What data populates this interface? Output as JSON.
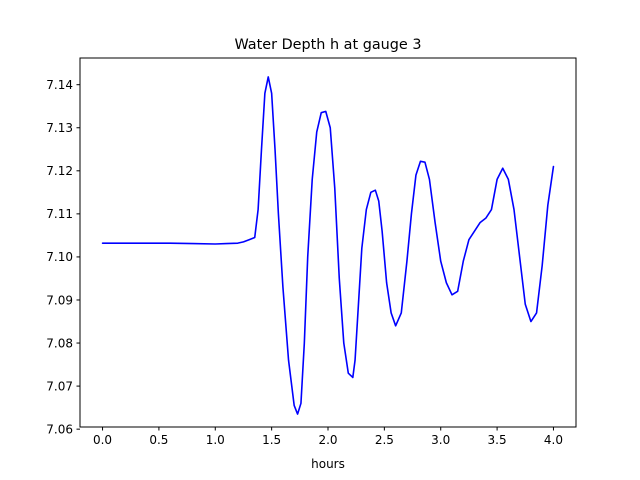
{
  "chart_data": {
    "type": "line",
    "title": "Water Depth h at gauge 3",
    "xlabel": "hours",
    "ylabel": "",
    "xlim": [
      -0.2,
      4.2
    ],
    "ylim": [
      7.0605,
      7.1462
    ],
    "xticks": [
      0.0,
      0.5,
      1.0,
      1.5,
      2.0,
      2.5,
      3.0,
      3.5,
      4.0
    ],
    "xtick_labels": [
      "0.0",
      "0.5",
      "1.0",
      "1.5",
      "2.0",
      "2.5",
      "3.0",
      "3.5",
      "4.0"
    ],
    "yticks": [
      7.06,
      7.07,
      7.08,
      7.09,
      7.1,
      7.11,
      7.12,
      7.13,
      7.14
    ],
    "ytick_labels": [
      "7.06",
      "7.07",
      "7.08",
      "7.09",
      "7.10",
      "7.11",
      "7.12",
      "7.13",
      "7.14"
    ],
    "grid": false,
    "legend": "none",
    "series": [
      {
        "color": "#0000ff",
        "x": [
          0.0,
          0.2,
          0.4,
          0.6,
          0.8,
          1.0,
          1.1,
          1.2,
          1.25,
          1.3,
          1.35,
          1.38,
          1.41,
          1.44,
          1.47,
          1.5,
          1.53,
          1.56,
          1.6,
          1.65,
          1.7,
          1.73,
          1.76,
          1.79,
          1.82,
          1.86,
          1.9,
          1.94,
          1.98,
          2.02,
          2.06,
          2.1,
          2.14,
          2.18,
          2.22,
          2.24,
          2.27,
          2.3,
          2.34,
          2.38,
          2.42,
          2.45,
          2.48,
          2.52,
          2.56,
          2.6,
          2.65,
          2.7,
          2.74,
          2.78,
          2.82,
          2.86,
          2.9,
          2.95,
          3.0,
          3.05,
          3.1,
          3.15,
          3.2,
          3.25,
          3.3,
          3.35,
          3.4,
          3.45,
          3.5,
          3.55,
          3.6,
          3.65,
          3.7,
          3.75,
          3.8,
          3.85,
          3.9,
          3.95,
          4.0
        ],
        "y": [
          7.1032,
          7.1032,
          7.1032,
          7.1032,
          7.1031,
          7.103,
          7.1031,
          7.1032,
          7.1035,
          7.104,
          7.1045,
          7.111,
          7.125,
          7.138,
          7.1418,
          7.138,
          7.125,
          7.11,
          7.093,
          7.076,
          7.0655,
          7.0635,
          7.066,
          7.08,
          7.1,
          7.118,
          7.129,
          7.1335,
          7.1338,
          7.13,
          7.116,
          7.095,
          7.08,
          7.073,
          7.072,
          7.076,
          7.089,
          7.102,
          7.111,
          7.115,
          7.1155,
          7.113,
          7.106,
          7.094,
          7.087,
          7.084,
          7.087,
          7.099,
          7.11,
          7.119,
          7.1222,
          7.122,
          7.118,
          7.108,
          7.099,
          7.094,
          7.0912,
          7.092,
          7.099,
          7.104,
          7.106,
          7.108,
          7.109,
          7.111,
          7.118,
          7.1206,
          7.118,
          7.111,
          7.1,
          7.089,
          7.085,
          7.087,
          7.098,
          7.112,
          7.121
        ]
      }
    ]
  }
}
